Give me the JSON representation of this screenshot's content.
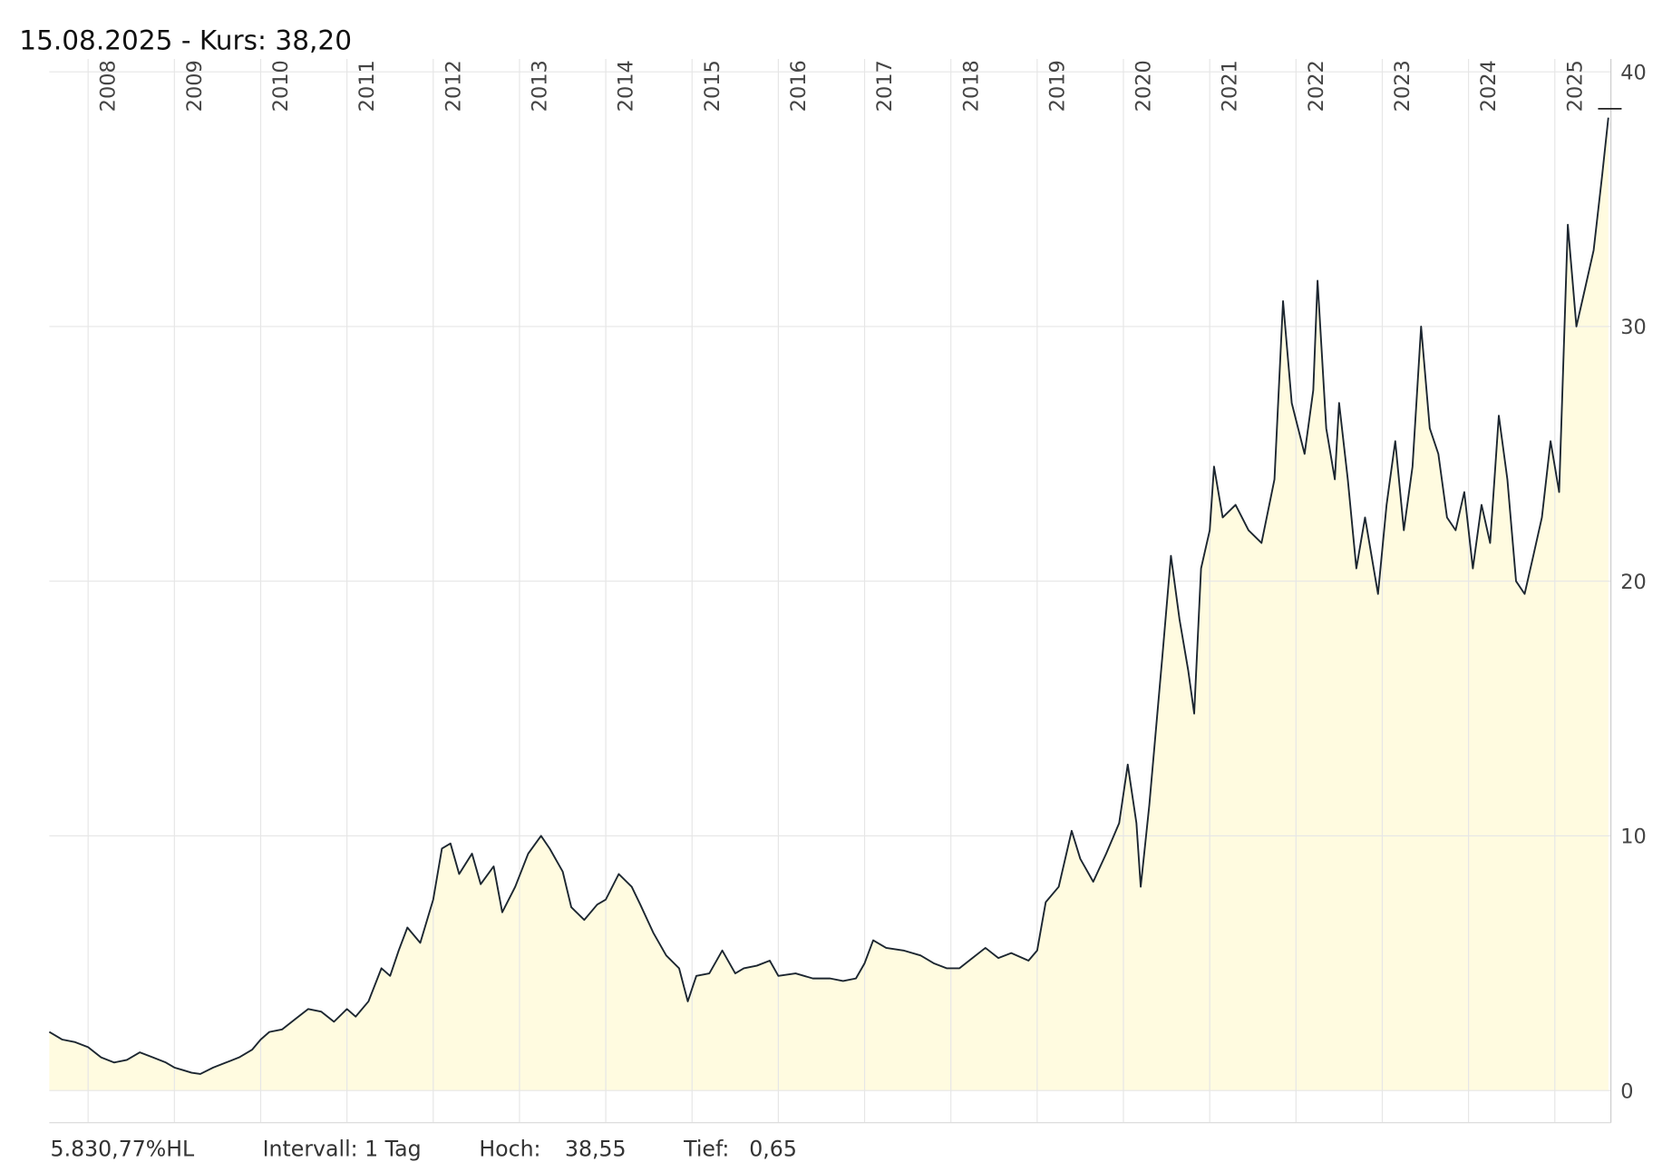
{
  "chart_data": {
    "type": "area",
    "title": "15.08.2025  -  Kurs: 38,20",
    "color": "#1c2630",
    "fill": "#fffbe0",
    "grid": true,
    "xlim": [
      2007.55,
      2025.65
    ],
    "ylim": [
      0,
      40
    ],
    "xticks": [
      2008,
      2009,
      2010,
      2011,
      2012,
      2013,
      2014,
      2015,
      2016,
      2017,
      2018,
      2019,
      2020,
      2021,
      2022,
      2023,
      2024,
      2025
    ],
    "yticks": [
      0,
      10,
      20,
      30,
      40
    ],
    "x": [
      2007.55,
      2007.7,
      2007.85,
      2008.0,
      2008.15,
      2008.3,
      2008.45,
      2008.6,
      2008.75,
      2008.9,
      2009.0,
      2009.1,
      2009.2,
      2009.3,
      2009.45,
      2009.6,
      2009.75,
      2009.9,
      2010.0,
      2010.1,
      2010.25,
      2010.4,
      2010.55,
      2010.7,
      2010.85,
      2011.0,
      2011.1,
      2011.25,
      2011.4,
      2011.5,
      2011.6,
      2011.7,
      2011.85,
      2012.0,
      2012.1,
      2012.2,
      2012.3,
      2012.45,
      2012.55,
      2012.7,
      2012.8,
      2012.95,
      2013.1,
      2013.25,
      2013.35,
      2013.5,
      2013.6,
      2013.75,
      2013.9,
      2014.0,
      2014.15,
      2014.3,
      2014.4,
      2014.55,
      2014.7,
      2014.85,
      2014.95,
      2015.05,
      2015.2,
      2015.35,
      2015.5,
      2015.6,
      2015.75,
      2015.9,
      2016.0,
      2016.2,
      2016.4,
      2016.6,
      2016.75,
      2016.9,
      2017.0,
      2017.1,
      2017.25,
      2017.45,
      2017.65,
      2017.8,
      2017.95,
      2018.1,
      2018.25,
      2018.4,
      2018.55,
      2018.7,
      2018.9,
      2019.0,
      2019.1,
      2019.25,
      2019.4,
      2019.5,
      2019.65,
      2019.8,
      2019.95,
      2020.05,
      2020.15,
      2020.2,
      2020.3,
      2020.45,
      2020.55,
      2020.65,
      2020.75,
      2020.82,
      2020.9,
      2021.0,
      2021.05,
      2021.15,
      2021.3,
      2021.45,
      2021.6,
      2021.75,
      2021.85,
      2021.95,
      2022.1,
      2022.2,
      2022.25,
      2022.35,
      2022.45,
      2022.5,
      2022.6,
      2022.7,
      2022.8,
      2022.95,
      2023.05,
      2023.15,
      2023.25,
      2023.35,
      2023.45,
      2023.55,
      2023.65,
      2023.75,
      2023.85,
      2023.95,
      2024.05,
      2024.15,
      2024.25,
      2024.35,
      2024.45,
      2024.55,
      2024.65,
      2024.75,
      2024.85,
      2024.95,
      2025.05,
      2025.15,
      2025.25,
      2025.35,
      2025.45,
      2025.55,
      2025.62
    ],
    "values": [
      2.3,
      2.0,
      1.9,
      1.7,
      1.3,
      1.1,
      1.2,
      1.5,
      1.3,
      1.1,
      0.9,
      0.8,
      0.7,
      0.65,
      0.9,
      1.1,
      1.3,
      1.6,
      2.0,
      2.3,
      2.4,
      2.8,
      3.2,
      3.1,
      2.7,
      3.2,
      2.9,
      3.5,
      4.8,
      4.5,
      5.5,
      6.4,
      5.8,
      7.5,
      9.5,
      9.7,
      8.5,
      9.3,
      8.1,
      8.8,
      7.0,
      8.0,
      9.3,
      10.0,
      9.5,
      8.6,
      7.2,
      6.7,
      7.3,
      7.5,
      8.5,
      8.0,
      7.3,
      6.2,
      5.3,
      4.8,
      3.5,
      4.5,
      4.6,
      5.5,
      4.6,
      4.8,
      4.9,
      5.1,
      4.5,
      4.6,
      4.4,
      4.4,
      4.3,
      4.4,
      5.0,
      5.9,
      5.6,
      5.5,
      5.3,
      5.0,
      4.8,
      4.8,
      5.2,
      5.6,
      5.2,
      5.4,
      5.1,
      5.5,
      7.4,
      8.0,
      10.2,
      9.1,
      8.2,
      9.3,
      10.5,
      12.8,
      10.5,
      8.0,
      11.2,
      17.0,
      21.0,
      18.5,
      16.5,
      14.8,
      20.5,
      22.0,
      24.5,
      22.5,
      23.0,
      22.0,
      21.5,
      24.0,
      31.0,
      27.0,
      25.0,
      27.5,
      31.8,
      26.0,
      24.0,
      27.0,
      24.0,
      20.5,
      22.5,
      19.5,
      23.0,
      25.5,
      22.0,
      24.5,
      30.0,
      26.0,
      25.0,
      22.5,
      22.0,
      23.5,
      20.5,
      23.0,
      21.5,
      26.5,
      24.0,
      20.0,
      19.5,
      21.0,
      22.5,
      25.5,
      23.5,
      34.0,
      30.0,
      31.5,
      33.0,
      36.0,
      38.2
    ],
    "high": {
      "value": 38.55,
      "label": "38,55"
    },
    "low": {
      "value": 0.65,
      "label": "0,65"
    },
    "footer": {
      "performance": "5.830,77%HL",
      "interval": "Intervall: 1 Tag",
      "high_label": "Hoch:",
      "low_label": "Tief:"
    }
  }
}
